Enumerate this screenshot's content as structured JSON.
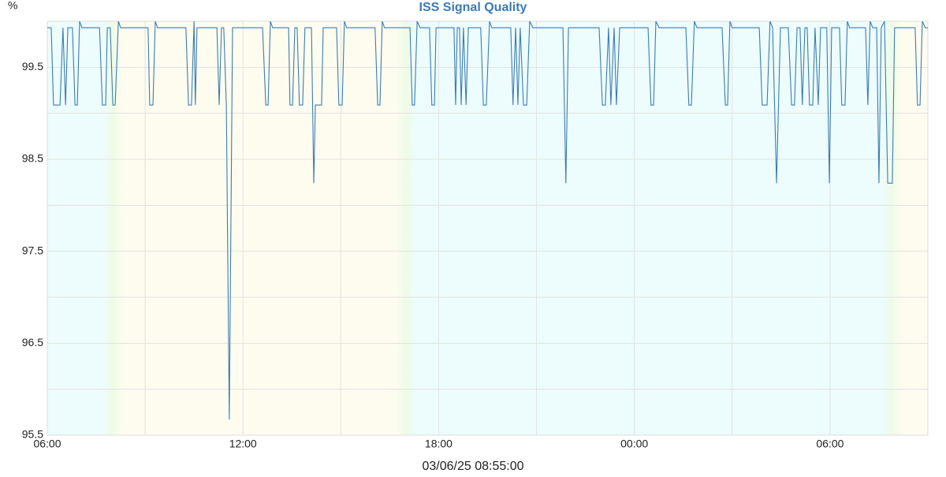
{
  "chart_data": {
    "type": "line",
    "title": "ISS Signal Quality",
    "y_label": "%",
    "footer": "03/06/25 08:55:00",
    "xlim": [
      0,
      27
    ],
    "xticks": [
      {
        "value": 0,
        "label": "06:00"
      },
      {
        "value": 6,
        "label": "12:00"
      },
      {
        "value": 12,
        "label": "18:00"
      },
      {
        "value": 18,
        "label": "00:00"
      },
      {
        "value": 24,
        "label": "06:00"
      }
    ],
    "xminorticks": [
      3,
      9,
      15,
      21
    ],
    "ylim": [
      95.5,
      100
    ],
    "yticks": [
      95.5,
      96.5,
      97.5,
      98.5,
      99.5
    ],
    "yminorticks": [
      96,
      97,
      98,
      99
    ],
    "grid": true,
    "bands": [
      {
        "from": 0,
        "to": 1.7,
        "color": "#edfcfc"
      },
      {
        "from": 2.3,
        "to": 10.7,
        "color": "#fdfcef"
      },
      {
        "from": 11.3,
        "to": 25.6,
        "color": "#edfcfc"
      },
      {
        "from": 26.2,
        "to": 27,
        "color": "#fdfcef"
      }
    ],
    "series": [
      {
        "name": "Signal Quality",
        "color": "#3a7db5",
        "x": [
          0,
          0.12,
          0.19,
          0.39,
          0.48,
          0.56,
          0.63,
          0.77,
          0.85,
          0.92,
          0.99,
          1.06,
          1.6,
          1.69,
          1.79,
          1.84,
          1.93,
          2.01,
          2.08,
          2.18,
          2.25,
          3.09,
          3.14,
          3.24,
          3.31,
          3.38,
          4.25,
          4.33,
          4.42,
          4.5,
          4.54,
          4.59,
          5.2,
          5.27,
          5.34,
          5.41,
          5.49,
          5.58,
          5.68,
          6.6,
          6.7,
          6.77,
          6.84,
          6.91,
          7.4,
          7.44,
          7.52,
          7.59,
          7.66,
          7.73,
          7.83,
          7.9,
          8.1,
          8.17,
          8.22,
          8.41,
          8.46,
          8.87,
          8.94,
          9.04,
          9.11,
          9.18,
          10.05,
          10.13,
          10.2,
          10.27,
          10.34,
          11.12,
          11.19,
          11.26,
          11.34,
          11.43,
          11.72,
          11.79,
          11.87,
          11.92,
          12.47,
          12.52,
          12.57,
          12.64,
          12.69,
          12.76,
          12.84,
          12.91,
          13.29,
          13.37,
          13.46,
          13.56,
          13.63,
          14.21,
          14.28,
          14.36,
          14.43,
          14.5,
          14.6,
          14.7,
          14.79,
          14.89,
          15.81,
          15.9,
          15.98,
          16.92,
          17.02,
          17.11,
          17.21,
          17.28,
          17.38,
          17.45,
          17.55,
          18.42,
          18.51,
          18.59,
          18.66,
          18.76,
          19.58,
          19.67,
          19.75,
          19.84,
          19.92,
          20.69,
          20.79,
          20.86,
          20.93,
          21,
          21.83,
          21.92,
          22.07,
          22.16,
          22.24,
          22.36,
          22.48,
          22.72,
          22.82,
          22.91,
          22.99,
          23.08,
          23.15,
          23.23,
          23.3,
          23.37,
          23.47,
          23.54,
          23.64,
          23.71,
          23.9,
          23.98,
          24.05,
          24.29,
          24.36,
          24.46,
          24.53,
          24.6,
          25.09,
          25.16,
          25.23,
          25.31,
          25.43,
          25.5,
          25.57,
          25.67,
          25.77,
          25.91,
          25.98,
          26.61,
          26.68,
          26.76,
          26.83,
          26.92,
          27
        ],
        "values": [
          99.93,
          99.93,
          99.09,
          99.09,
          99.93,
          99.09,
          99.93,
          99.93,
          99.09,
          99.09,
          100,
          99.93,
          99.93,
          99.09,
          99.09,
          99.93,
          99.93,
          99.09,
          99.09,
          100,
          99.93,
          99.93,
          99.09,
          99.09,
          100,
          99.93,
          99.93,
          99.09,
          99.09,
          100,
          99.09,
          99.93,
          99.93,
          99.09,
          99.93,
          99.93,
          99.09,
          95.67,
          99.93,
          99.93,
          99.09,
          99.09,
          100,
          99.93,
          99.93,
          99.09,
          99.09,
          99.93,
          99.93,
          99.09,
          99.09,
          99.93,
          99.93,
          98.24,
          99.09,
          99.09,
          99.93,
          99.93,
          99.09,
          99.09,
          100,
          99.93,
          99.93,
          99.09,
          99.09,
          100,
          99.93,
          99.93,
          99.09,
          99.09,
          100,
          99.93,
          99.93,
          99.09,
          99.09,
          99.93,
          99.93,
          99.09,
          99.93,
          99.93,
          99.09,
          99.93,
          99.09,
          99.93,
          99.93,
          99.09,
          99.09,
          100,
          99.93,
          99.93,
          99.09,
          99.93,
          99.09,
          99.93,
          99.09,
          99.09,
          100,
          99.93,
          99.93,
          98.24,
          99.93,
          99.93,
          99.09,
          99.09,
          99.93,
          99.09,
          99.93,
          99.09,
          99.93,
          99.93,
          99.09,
          99.09,
          100,
          99.93,
          99.93,
          99.09,
          99.09,
          100,
          99.93,
          99.93,
          99.09,
          99.09,
          100,
          99.93,
          99.93,
          99.09,
          99.09,
          100,
          99.93,
          98.24,
          99.93,
          99.93,
          99.09,
          99.09,
          99.93,
          99.93,
          99.09,
          99.93,
          99.93,
          99.09,
          99.09,
          99.93,
          99.09,
          99.93,
          99.93,
          98.24,
          99.93,
          99.93,
          99.09,
          99.09,
          100,
          99.93,
          99.93,
          99.09,
          100,
          99.93,
          99.93,
          98.24,
          99.93,
          100,
          98.24,
          98.24,
          99.93,
          99.93,
          99.09,
          99.09,
          100,
          99.93,
          99.93
        ]
      }
    ]
  }
}
